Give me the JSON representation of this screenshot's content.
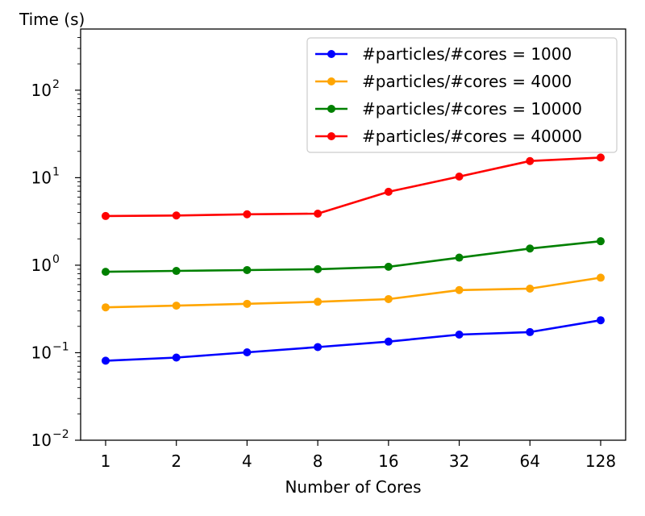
{
  "chart_data": {
    "type": "line",
    "xlabel": "Number of Cores",
    "ylabel": "Time (s)",
    "x_scale": "log2",
    "y_scale": "log",
    "x": [
      1,
      2,
      4,
      8,
      16,
      32,
      64,
      128
    ],
    "x_tick_labels": [
      "1",
      "2",
      "4",
      "8",
      "16",
      "32",
      "64",
      "128"
    ],
    "ylim": [
      0.01,
      500
    ],
    "y_ticks": [
      0.01,
      0.1,
      1,
      10,
      100
    ],
    "y_tick_labels": [
      {
        "base": "10",
        "exp": "−2"
      },
      {
        "base": "10",
        "exp": "−1"
      },
      {
        "base": "10",
        "exp": "0"
      },
      {
        "base": "10",
        "exp": "1"
      },
      {
        "base": "10",
        "exp": "2"
      }
    ],
    "legend_position": "top-right",
    "grid": false,
    "series": [
      {
        "name": "#particles/#cores = 1000",
        "color": "#0000ff",
        "values": [
          0.081,
          0.088,
          0.101,
          0.116,
          0.134,
          0.161,
          0.172,
          0.235
        ]
      },
      {
        "name": "#particles/#cores = 4000",
        "color": "#ffa500",
        "values": [
          0.33,
          0.345,
          0.362,
          0.382,
          0.41,
          0.52,
          0.54,
          0.72
        ]
      },
      {
        "name": "#particles/#cores = 10000",
        "color": "#008000",
        "values": [
          0.84,
          0.86,
          0.88,
          0.9,
          0.96,
          1.22,
          1.55,
          1.88
        ]
      },
      {
        "name": "#particles/#cores = 40000",
        "color": "#ff0000",
        "values": [
          3.65,
          3.7,
          3.82,
          3.88,
          6.9,
          10.3,
          15.5,
          17.0
        ]
      }
    ]
  }
}
